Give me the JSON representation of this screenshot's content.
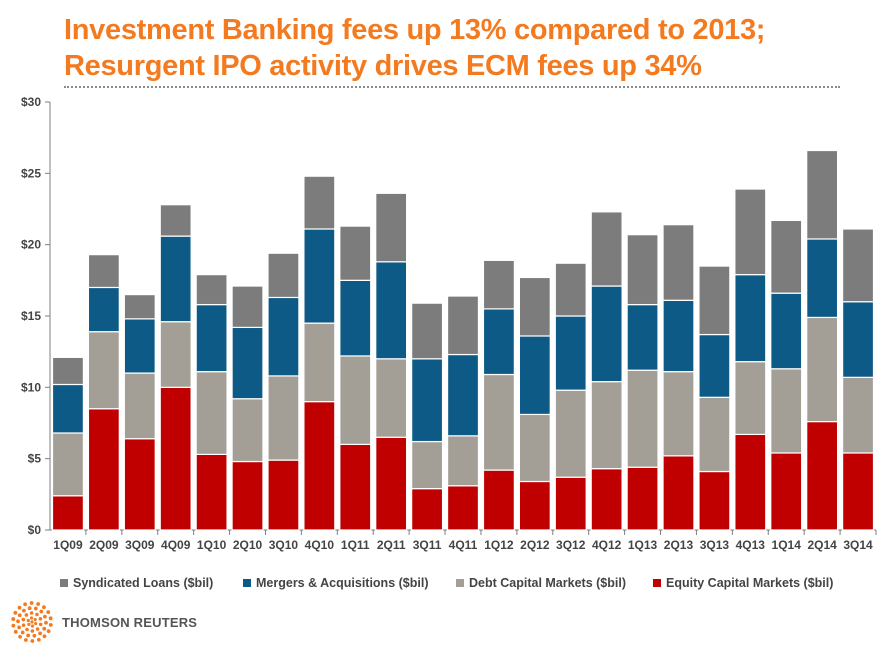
{
  "title": {
    "line1": "Investment Banking fees up 13% compared to 2013;",
    "line2": "Resurgent IPO activity drives ECM fees up 34%"
  },
  "brand": {
    "name": "THOMSON REUTERS",
    "color": "#f47a20"
  },
  "chart_data": {
    "type": "bar",
    "stacked": true,
    "title": "",
    "xlabel": "",
    "ylabel": "",
    "ylim": [
      0,
      30
    ],
    "y_ticks": [
      "$0",
      "$5",
      "$10",
      "$15",
      "$20",
      "$25",
      "$30"
    ],
    "y_tick_values": [
      0,
      5,
      10,
      15,
      20,
      25,
      30
    ],
    "grid": false,
    "legend_position": "bottom",
    "categories": [
      "1Q09",
      "2Q09",
      "3Q09",
      "4Q09",
      "1Q10",
      "2Q10",
      "3Q10",
      "4Q10",
      "1Q11",
      "2Q11",
      "3Q11",
      "4Q11",
      "1Q12",
      "2Q12",
      "3Q12",
      "4Q12",
      "1Q13",
      "2Q13",
      "3Q13",
      "4Q13",
      "1Q14",
      "2Q14",
      "3Q14"
    ],
    "series": [
      {
        "name": "Equity Capital Markets ($bil)",
        "color": "#c00000",
        "values": [
          2.4,
          8.5,
          6.4,
          10.0,
          5.3,
          4.8,
          4.9,
          9.0,
          6.0,
          6.5,
          2.9,
          3.1,
          4.2,
          3.4,
          3.7,
          4.3,
          4.4,
          5.2,
          4.1,
          6.7,
          5.4,
          7.6,
          5.4
        ]
      },
      {
        "name": "Debt Capital Markets ($bil)",
        "color": "#a39e96",
        "values": [
          4.4,
          5.4,
          4.6,
          4.6,
          5.8,
          4.4,
          5.9,
          5.5,
          6.2,
          5.5,
          3.3,
          3.5,
          6.7,
          4.7,
          6.1,
          6.1,
          6.8,
          5.9,
          5.2,
          5.1,
          5.9,
          7.3,
          5.3
        ]
      },
      {
        "name": "Mergers & Acquisitions ($bil)",
        "color": "#0d5a86",
        "values": [
          3.4,
          3.1,
          3.8,
          6.0,
          4.7,
          5.0,
          5.5,
          6.6,
          5.3,
          6.8,
          5.8,
          5.7,
          4.6,
          5.5,
          5.2,
          6.7,
          4.6,
          5.0,
          4.4,
          6.1,
          5.3,
          5.5,
          5.3
        ]
      },
      {
        "name": "Syndicated Loans ($bil)",
        "color": "#7c7c7c",
        "values": [
          1.9,
          2.3,
          1.7,
          2.2,
          2.1,
          2.9,
          3.1,
          3.7,
          3.8,
          4.8,
          3.9,
          4.1,
          3.4,
          4.1,
          3.7,
          5.2,
          4.9,
          5.3,
          4.8,
          6.0,
          5.1,
          6.2,
          5.1
        ]
      }
    ],
    "legend": [
      {
        "label": "Syndicated Loans ($bil)",
        "color": "#7c7c7c"
      },
      {
        "label": "Mergers & Acquisitions ($bil)",
        "color": "#0d5a86"
      },
      {
        "label": "Debt Capital Markets ($bil)",
        "color": "#a39e96"
      },
      {
        "label": "Equity Capital Markets ($bil)",
        "color": "#c00000"
      }
    ]
  }
}
